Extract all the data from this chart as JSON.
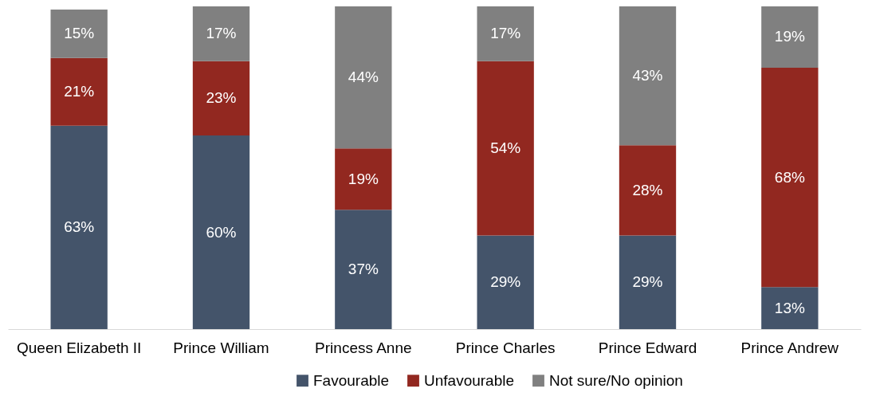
{
  "chart_data": {
    "type": "bar",
    "stacked": true,
    "tick_labels": "x",
    "legend": "bottom",
    "categories": [
      "Queen Elizabeth II",
      "Prince William",
      "Princess Anne",
      "Prince Charles",
      "Prince Edward",
      "Prince Andrew"
    ],
    "series": [
      {
        "name": "Favourable",
        "color": "#44546a",
        "values": [
          63,
          60,
          37,
          29,
          29,
          13
        ],
        "value_labels": [
          "63%",
          "60%",
          "37%",
          "29%",
          "29%",
          "13%"
        ]
      },
      {
        "name": "Unfavourable",
        "color": "#922820",
        "values": [
          21,
          23,
          19,
          54,
          28,
          68
        ],
        "value_labels": [
          "21%",
          "23%",
          "19%",
          "54%",
          "28%",
          "68%"
        ]
      },
      {
        "name": "Not sure/No opinion",
        "color": "#808080",
        "values": [
          15,
          17,
          44,
          17,
          43,
          19
        ],
        "value_labels": [
          "15%",
          "17%",
          "44%",
          "17%",
          "43%",
          "19%"
        ]
      }
    ]
  }
}
